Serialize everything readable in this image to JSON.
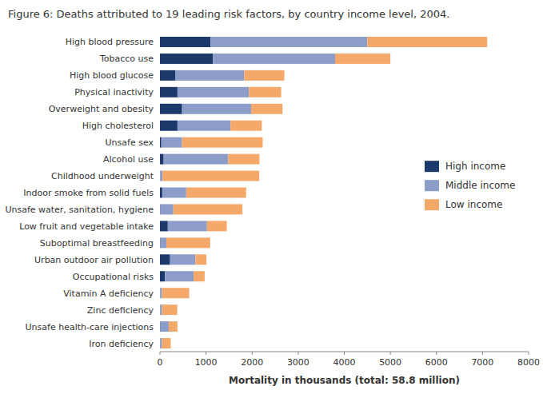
{
  "chart_data": {
    "type": "bar",
    "orientation": "horizontal",
    "stacked": true,
    "title": "Figure 6: Deaths attributed to 19 leading risk factors, by country income level, 2004.",
    "xlabel": "Mortality in thousands (total: 58.8 million)",
    "categories": [
      "High blood pressure",
      "Tobacco use",
      "High blood glucose",
      "Physical inactivity",
      "Overweight and obesity",
      "High cholesterol",
      "Unsafe sex",
      "Alcohol use",
      "Childhood underweight",
      "Indoor smoke from solid fuels",
      "Unsafe water, sanitation, hygiene",
      "Low fruit and vegetable intake",
      "Suboptimal breastfeeding",
      "Urban outdoor air pollution",
      "Occupational risks",
      "Vitamin A deficiency",
      "Zinc deficiency",
      "Unsafe health-care injections",
      "Iron deficiency"
    ],
    "series": [
      {
        "name": "High income",
        "color": "#1b3a6b",
        "values": [
          1100,
          1150,
          330,
          380,
          480,
          380,
          30,
          80,
          5,
          50,
          10,
          170,
          10,
          220,
          110,
          5,
          5,
          10,
          5
        ]
      },
      {
        "name": "Middle income",
        "color": "#8b9dc8",
        "values": [
          3400,
          2650,
          1500,
          1550,
          1500,
          1150,
          450,
          1400,
          50,
          520,
          280,
          850,
          130,
          550,
          620,
          40,
          40,
          180,
          40
        ]
      },
      {
        "name": "Low income",
        "color": "#f4a96a",
        "values": [
          2600,
          1200,
          870,
          700,
          680,
          680,
          1750,
          680,
          2100,
          1300,
          1500,
          430,
          950,
          240,
          240,
          590,
          330,
          190,
          190
        ]
      }
    ],
    "xlim": [
      0,
      8000
    ],
    "xticks": [
      0,
      1000,
      2000,
      3000,
      4000,
      5000,
      6000,
      7000,
      8000
    ],
    "legend": "right",
    "grid": false
  }
}
